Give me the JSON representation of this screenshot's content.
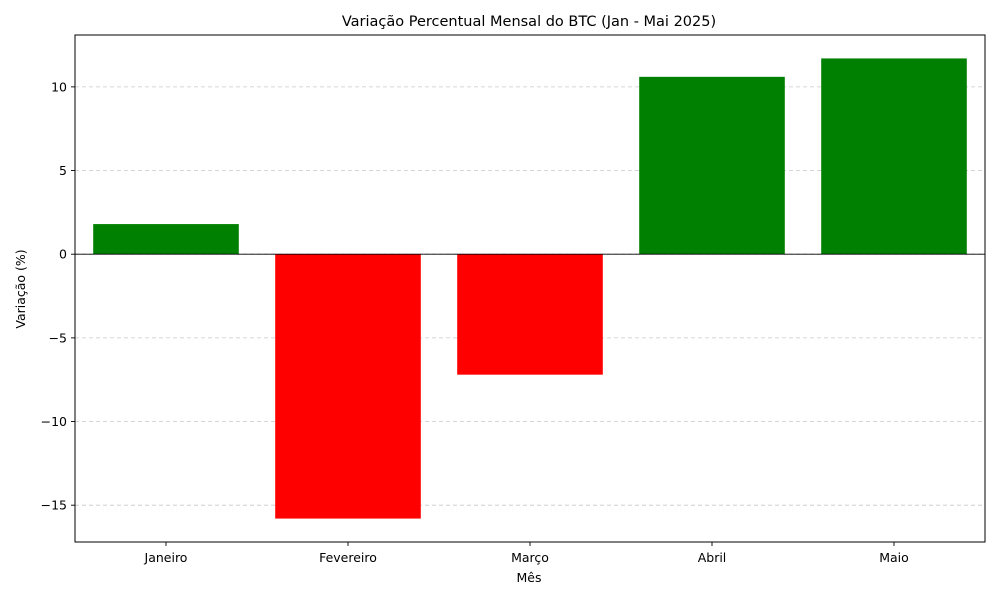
{
  "chart_data": {
    "type": "bar",
    "title": "Variação Percentual Mensal do BTC (Jan - Mai 2025)",
    "xlabel": "Mês",
    "ylabel": "Variação (%)",
    "categories": [
      "Janeiro",
      "Fevereiro",
      "Março",
      "Abril",
      "Maio"
    ],
    "values": [
      1.8,
      -15.8,
      -7.2,
      10.6,
      11.7
    ],
    "ylim": [
      -17.2,
      13.1
    ],
    "yticks": [
      -15,
      -10,
      -5,
      0,
      5,
      10
    ],
    "ytick_labels": [
      "−15",
      "−10",
      "−5",
      "0",
      "5",
      "10"
    ],
    "grid": {
      "axis": "y",
      "style": "dashed",
      "color": "#c8c8c8"
    },
    "zero_line": true,
    "colors": {
      "positive": "#008000",
      "negative": "#ff0000",
      "axis": "#000000"
    }
  }
}
